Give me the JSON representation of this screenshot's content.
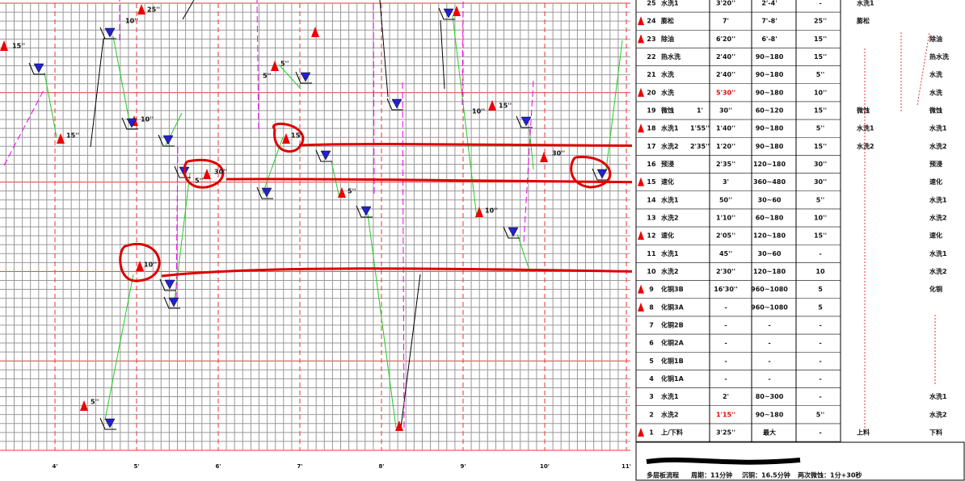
{
  "chart": {
    "x_labels": [
      "4'",
      "5'",
      "6'",
      "7'",
      "8'",
      "9'",
      "10'",
      "11'"
    ],
    "annotations": [
      "15''",
      "25''",
      "10''",
      "15''",
      "10''",
      "5''",
      "5''",
      "15'",
      "30''",
      "5''",
      "5''",
      "10''",
      "10''",
      "15''",
      "30''",
      "10''",
      "5''"
    ]
  },
  "table": {
    "rows": [
      {
        "no": "25",
        "name": "水洗1",
        "time": "3'20''",
        "range": "2'-4'",
        "rest": "-",
        "left": "水洗1"
      },
      {
        "no": "24",
        "name": "膨松",
        "time": "7'",
        "range": "7'-8'",
        "rest": "25''",
        "left": "膨松"
      },
      {
        "no": "23",
        "name": "除油",
        "time": "6'20''",
        "range": "6'-8'",
        "rest": "15''",
        "right": "除油"
      },
      {
        "no": "22",
        "name": "热水洗",
        "time": "2'40''",
        "range": "90~180",
        "rest": "15''",
        "right": "热水洗"
      },
      {
        "no": "21",
        "name": "水洗",
        "time": "2'40''",
        "range": "90~180",
        "rest": "5''",
        "right": "水洗"
      },
      {
        "no": "20",
        "name": "水洗",
        "time": "5'30''",
        "range": "90~180",
        "rest": "10''",
        "right": "水洗"
      },
      {
        "no": "19",
        "name": "微蚀",
        "extra": "1'",
        "time": "30''",
        "range": "60~120",
        "rest": "15''",
        "left": "微蚀",
        "right": "微蚀"
      },
      {
        "no": "18",
        "name": "水洗1",
        "extra": "1'55''",
        "time": "1'40''",
        "range": "90~180",
        "rest": "5''",
        "left": "水洗1",
        "right": "水洗1"
      },
      {
        "no": "17",
        "name": "水洗2",
        "extra": "2'35''",
        "time": "1'20''",
        "range": "90~180",
        "rest": "15''",
        "left": "水洗2",
        "right": "水洗2"
      },
      {
        "no": "16",
        "name": "预浸",
        "time": "2'35''",
        "range": "120~180",
        "rest": "30''",
        "right": "预浸"
      },
      {
        "no": "15",
        "name": "速化",
        "time": "3'",
        "range": "360~480",
        "rest": "30''",
        "right": "速化"
      },
      {
        "no": "14",
        "name": "水洗1",
        "time": "50''",
        "range": "30~60",
        "rest": "5''",
        "right": "水洗1"
      },
      {
        "no": "13",
        "name": "水洗2",
        "time": "1'10''",
        "range": "60~180",
        "rest": "10''",
        "right": "水洗2"
      },
      {
        "no": "12",
        "name": "速化",
        "time": "2'05''",
        "range": "120~180",
        "rest": "15''",
        "right": "速化"
      },
      {
        "no": "11",
        "name": "水洗1",
        "time": "45''",
        "range": "30~60",
        "rest": "-",
        "right": "水洗1"
      },
      {
        "no": "10",
        "name": "水洗2",
        "time": "2'30''",
        "range": "120~180",
        "rest": "10",
        "right": "水洗2"
      },
      {
        "no": "9",
        "name": "化铜3B",
        "time": "16'30''",
        "range": "960~1080",
        "rest": "5",
        "right": "化铜"
      },
      {
        "no": "8",
        "name": "化铜3A",
        "time": "-",
        "range": "960~1080",
        "rest": "5"
      },
      {
        "no": "7",
        "name": "化铜2B",
        "time": "-",
        "range": "-",
        "rest": "-"
      },
      {
        "no": "6",
        "name": "化铜2A",
        "time": "-",
        "range": "-",
        "rest": "-"
      },
      {
        "no": "5",
        "name": "化铜1B",
        "time": "-",
        "range": "-",
        "rest": "-"
      },
      {
        "no": "4",
        "name": "化铜1A",
        "time": "-",
        "range": "-",
        "rest": "-"
      },
      {
        "no": "3",
        "name": "水洗1",
        "time": "2'",
        "range": "80~300",
        "rest": "-",
        "right": "水洗1"
      },
      {
        "no": "2",
        "name": "水洗2",
        "time": "1'15''",
        "range": "90~180",
        "rest": "5''",
        "right": "水洗2"
      },
      {
        "no": "1",
        "name": "上/下料",
        "time": "3'25''",
        "range": "最大",
        "rest": "-",
        "left": "上料",
        "right": "下料"
      }
    ]
  },
  "footer": {
    "title": "多层板流程",
    "items": [
      "周期：11分钟",
      "沉铜：16.5分钟",
      "两次微蚀：1分+30秒"
    ]
  }
}
